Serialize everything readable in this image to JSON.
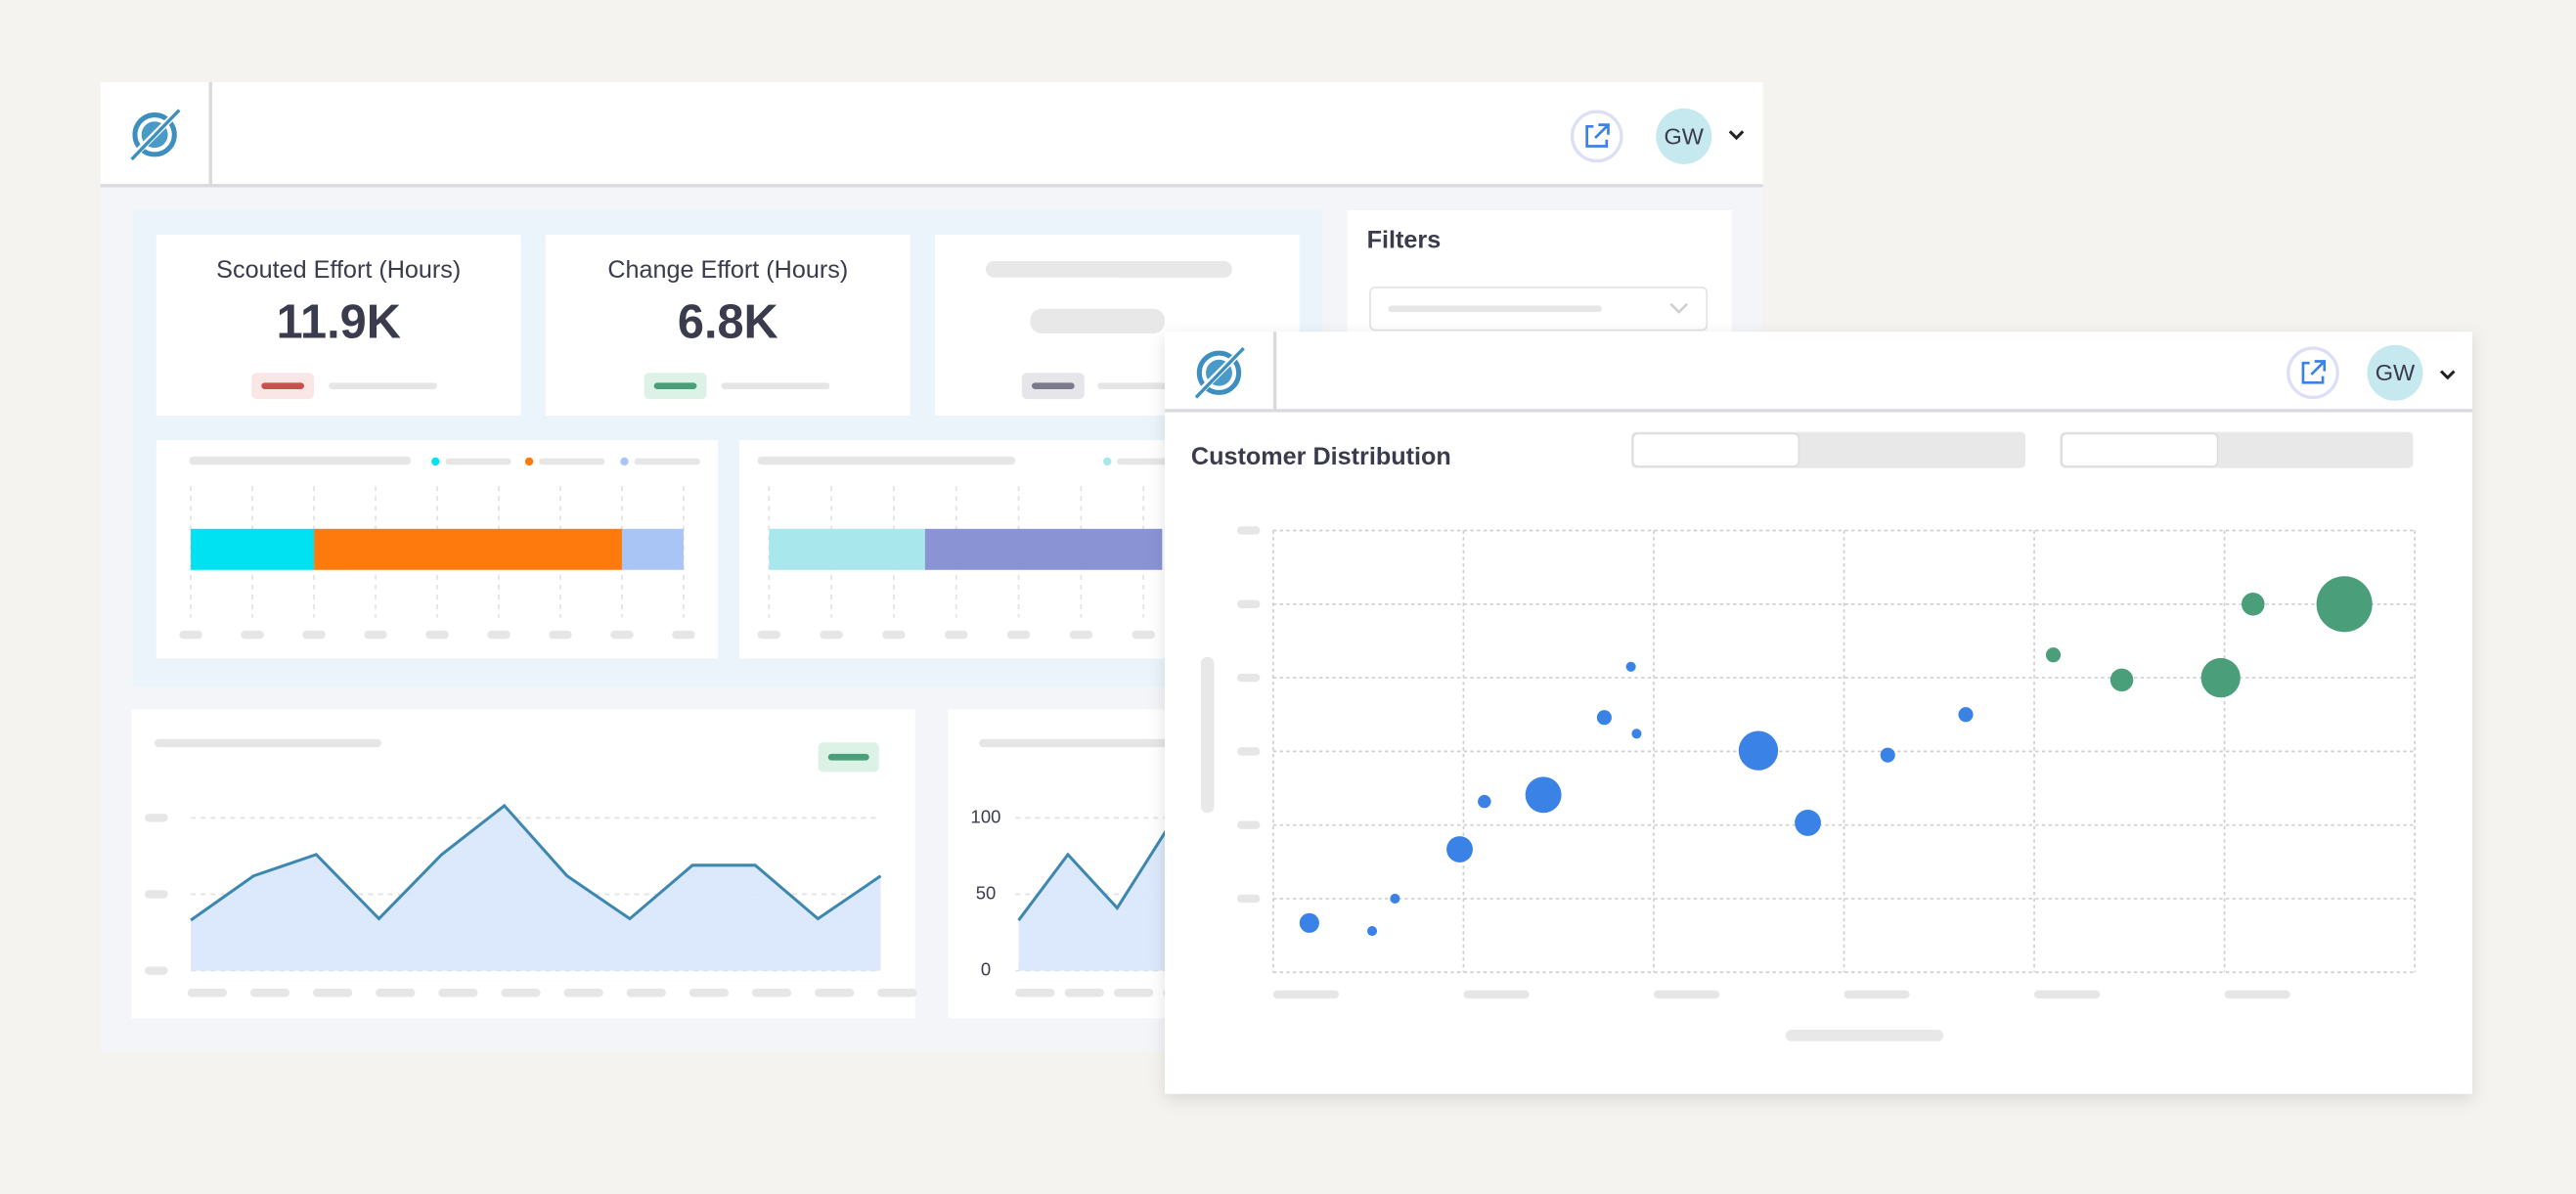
{
  "main_window": {
    "user_initials": "GW",
    "kpis": [
      {
        "label": "Scouted Effort (Hours)",
        "value": "11.9K"
      },
      {
        "label": "Change Effort (Hours)",
        "value": "6.8K"
      }
    ],
    "filters_title": "Filters"
  },
  "popup_window": {
    "user_initials": "GW"
  },
  "chart_data": [
    {
      "type": "bar",
      "orientation": "horizontal",
      "stacked": true,
      "categories": [
        null
      ],
      "series": [
        {
          "color": "#00e1f2",
          "values": [
            2
          ]
        },
        {
          "color": "#ff7a0d",
          "values": [
            5
          ]
        },
        {
          "color": "#a9c5f5",
          "values": [
            1
          ]
        }
      ],
      "xlim": [
        0,
        8
      ],
      "xticks": [
        0,
        1,
        2,
        3,
        4,
        5,
        6,
        7,
        8
      ],
      "grid": true
    },
    {
      "type": "bar",
      "orientation": "horizontal",
      "stacked": true,
      "categories": [
        null
      ],
      "series": [
        {
          "color": "#a8e8ed",
          "values": [
            2.5
          ]
        },
        {
          "color": "#8a93d4",
          "values": [
            3.8
          ]
        }
      ],
      "xlim": [
        0,
        8
      ],
      "xticks": [
        0,
        1,
        2,
        3,
        4,
        5,
        6,
        7,
        8
      ],
      "grid": true
    },
    {
      "type": "area",
      "categories": [
        null,
        null,
        null,
        null,
        null,
        null,
        null,
        null,
        null,
        null,
        null,
        null
      ],
      "values": [
        33,
        62,
        76,
        34,
        76,
        108,
        62,
        34,
        69,
        69,
        34,
        62
      ],
      "color": "#3d87b0",
      "fill": "#d8e5fb",
      "ylim": [
        0,
        100
      ],
      "yticks": [
        0,
        50,
        100
      ],
      "tick_labels_shown": false,
      "grid": true
    },
    {
      "type": "area",
      "categories": [
        null,
        null,
        null,
        null
      ],
      "values": [
        33,
        76,
        41,
        92
      ],
      "color": "#3d87b0",
      "fill": "#d8e5fb",
      "ylim": [
        0,
        100
      ],
      "yticks": [
        0,
        50,
        100
      ],
      "tick_labels_shown": true,
      "grid": true
    },
    {
      "type": "scatter",
      "title": "Customer Distribution",
      "series": [
        {
          "color": "#3b82e6",
          "x": [
            0.19,
            0.52,
            0.64,
            0.98,
            1.11,
            1.42,
            1.74,
            1.88,
            1.91,
            2.55,
            2.81,
            3.23,
            3.64
          ],
          "values": [
            0.67,
            0.56,
            1.0,
            1.67,
            2.32,
            2.41,
            3.46,
            4.15,
            3.24,
            3.01,
            2.03,
            2.95,
            3.5
          ],
          "sizes": [
            6,
            3,
            3,
            8,
            4,
            11,
            4.5,
            3,
            3,
            12,
            8,
            4.5,
            4.5
          ]
        },
        {
          "color": "#4a9e7a",
          "x": [
            4.1,
            4.46,
            4.98,
            5.15,
            5.63
          ],
          "values": [
            4.31,
            3.97,
            4.0,
            5.0,
            5.0
          ],
          "sizes": [
            4.5,
            7,
            12,
            7,
            17
          ]
        }
      ],
      "xlim": [
        0,
        6
      ],
      "xticks": [
        0,
        1,
        2,
        3,
        4,
        5,
        6
      ],
      "ylim": [
        0,
        6
      ],
      "yticks": [
        0,
        1,
        2,
        3,
        4,
        5,
        6
      ],
      "grid": true
    }
  ]
}
